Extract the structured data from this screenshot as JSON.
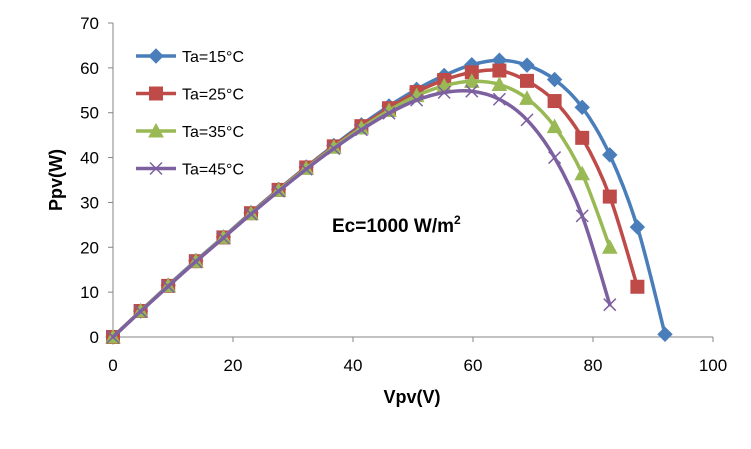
{
  "chart_data": {
    "type": "line",
    "title": "",
    "xlabel": "Vpv(V)",
    "ylabel": "Ppv(W)",
    "xlim": [
      0,
      100
    ],
    "ylim": [
      0,
      70
    ],
    "x_ticks": [
      "0",
      "20",
      "40",
      "60",
      "80",
      "100"
    ],
    "y_ticks": [
      "0",
      "10",
      "20",
      "30",
      "40",
      "50",
      "60",
      "70"
    ],
    "grid": false,
    "legend_position": "top-left",
    "annotation": {
      "text": "Ec=1000 W/m",
      "superscript": "2"
    },
    "series": [
      {
        "name": "Ta=15°C",
        "color": "#4a7ebb",
        "marker": "diamond",
        "x": [
          0,
          4.6,
          9.2,
          13.8,
          18.4,
          23,
          27.6,
          32.2,
          36.8,
          41.4,
          46,
          50.6,
          55.2,
          59.8,
          64.4,
          69,
          73.6,
          78.2,
          82.8,
          87.4,
          92
        ],
        "y": [
          0,
          5.8,
          11.5,
          17,
          22.3,
          27.7,
          32.9,
          37.9,
          42.7,
          47.3,
          51.5,
          55.2,
          58.3,
          60.7,
          61.7,
          60.6,
          57.4,
          51.2,
          40.6,
          24.5,
          0.6
        ]
      },
      {
        "name": "Ta=25°C",
        "color": "#be4b48",
        "marker": "square",
        "x": [
          0,
          4.6,
          9.2,
          13.8,
          18.4,
          23,
          27.6,
          32.2,
          36.8,
          41.4,
          46,
          50.6,
          55.2,
          59.8,
          64.4,
          69,
          73.6,
          78.2,
          82.8,
          87.4
        ],
        "y": [
          0,
          5.8,
          11.4,
          16.9,
          22.2,
          27.6,
          32.8,
          37.8,
          42.5,
          47,
          51,
          54.6,
          57.3,
          59,
          59.4,
          57.1,
          52.6,
          44.4,
          31.3,
          11.2
        ]
      },
      {
        "name": "Ta=35°C",
        "color": "#98b954",
        "marker": "triangle",
        "x": [
          0,
          4.6,
          9.2,
          13.8,
          18.4,
          23,
          27.6,
          32.2,
          36.8,
          41.4,
          46,
          50.6,
          55.2,
          59.8,
          64.4,
          69,
          73.6,
          78.2,
          82.8
        ],
        "y": [
          0,
          5.8,
          11.4,
          16.9,
          22.2,
          27.5,
          32.7,
          37.6,
          42.3,
          46.6,
          50.5,
          53.8,
          56,
          57,
          56.3,
          53.2,
          46.9,
          36.4,
          20
        ]
      },
      {
        "name": "Ta=45°C",
        "color": "#7d60a0",
        "marker": "x",
        "x": [
          0,
          4.6,
          9.2,
          13.8,
          18.4,
          23,
          27.6,
          32.2,
          36.8,
          41.4,
          46,
          50.6,
          55.2,
          59.8,
          64.4,
          69,
          73.6,
          78.2,
          82.8
        ],
        "y": [
          0,
          5.7,
          11.3,
          16.8,
          22.1,
          27.4,
          32.5,
          37.4,
          42,
          46.2,
          49.9,
          52.8,
          54.5,
          54.8,
          53,
          48.4,
          40,
          27,
          7.2
        ]
      }
    ]
  }
}
